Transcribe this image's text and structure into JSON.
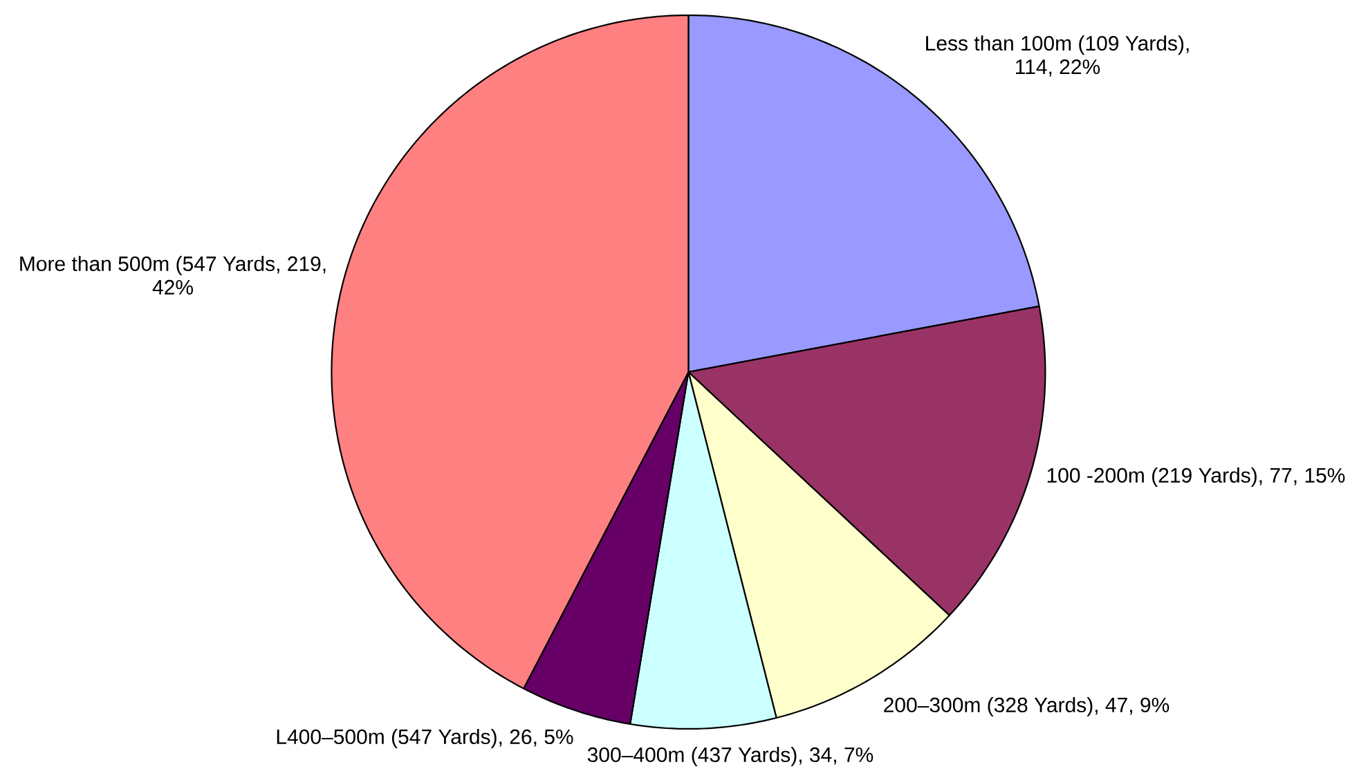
{
  "chart_data": {
    "type": "pie",
    "categories": [
      "Less than 100m (109 Yards), 114, 22%",
      "100 -200m (219 Yards), 77, 15%",
      "200–300m (328 Yards), 47, 9%",
      "300–400m (437 Yards), 34, 7%",
      "L400–500m (547 Yards), 26, 5%",
      "More than 500m (547 Yards, 219, 42%"
    ],
    "values": [
      114,
      77,
      47,
      34,
      26,
      219
    ],
    "colors": [
      "#9999ff",
      "#993366",
      "#ffffcc",
      "#ccffff",
      "#660066",
      "#ff8080"
    ]
  }
}
